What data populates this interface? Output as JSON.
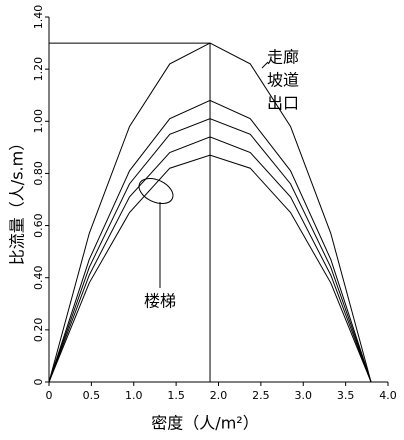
{
  "chart_data": {
    "type": "line",
    "x_label": "密度（人/m²）",
    "y_label": "比流量（人/s.m）",
    "x": [
      0,
      0.475,
      0.95,
      1.425,
      1.9,
      2.375,
      2.85,
      3.325,
      3.8
    ],
    "series": [
      {
        "color": "#000000",
        "values": [
          0,
          0.57,
          0.98,
          1.22,
          1.3,
          1.22,
          0.98,
          0.57,
          0
        ]
      },
      {
        "color": "#000000",
        "values": [
          0,
          0.47,
          0.81,
          1.01,
          1.08,
          1.01,
          0.81,
          0.47,
          0
        ]
      },
      {
        "color": "#000000",
        "values": [
          0,
          0.44,
          0.76,
          0.95,
          1.01,
          0.95,
          0.76,
          0.44,
          0
        ]
      },
      {
        "color": "#000000",
        "values": [
          0,
          0.41,
          0.71,
          0.88,
          0.94,
          0.88,
          0.71,
          0.41,
          0
        ]
      },
      {
        "color": "#000000",
        "values": [
          0,
          0.38,
          0.65,
          0.82,
          0.87,
          0.82,
          0.65,
          0.38,
          0
        ]
      }
    ],
    "annotations": [
      "走廊",
      "坡道",
      "出口",
      "楼梯"
    ],
    "xlim": [
      0,
      4.0
    ],
    "ylim": [
      0,
      1.4
    ],
    "xticks": [
      0,
      0.5,
      {
        "value": 1.0,
        "label": "1.0"
      },
      1.5,
      {
        "value": 2.0,
        "label": "2.0"
      },
      2.5,
      {
        "value": 3.0,
        "label": "3.0"
      },
      3.5,
      {
        "value": 4.0,
        "label": "4.0"
      }
    ],
    "yticks": [
      0,
      {
        "value": 0.2,
        "label": "0.20"
      },
      {
        "value": 0.4,
        "label": "0.40"
      },
      {
        "value": 0.6,
        "label": "0.60"
      },
      {
        "value": 0.8,
        "label": "0.80"
      },
      {
        "value": 1.0,
        "label": "1.00"
      },
      {
        "value": 1.2,
        "label": "1.20"
      },
      {
        "value": 1.4,
        "label": "1.40"
      }
    ],
    "grid": false
  }
}
